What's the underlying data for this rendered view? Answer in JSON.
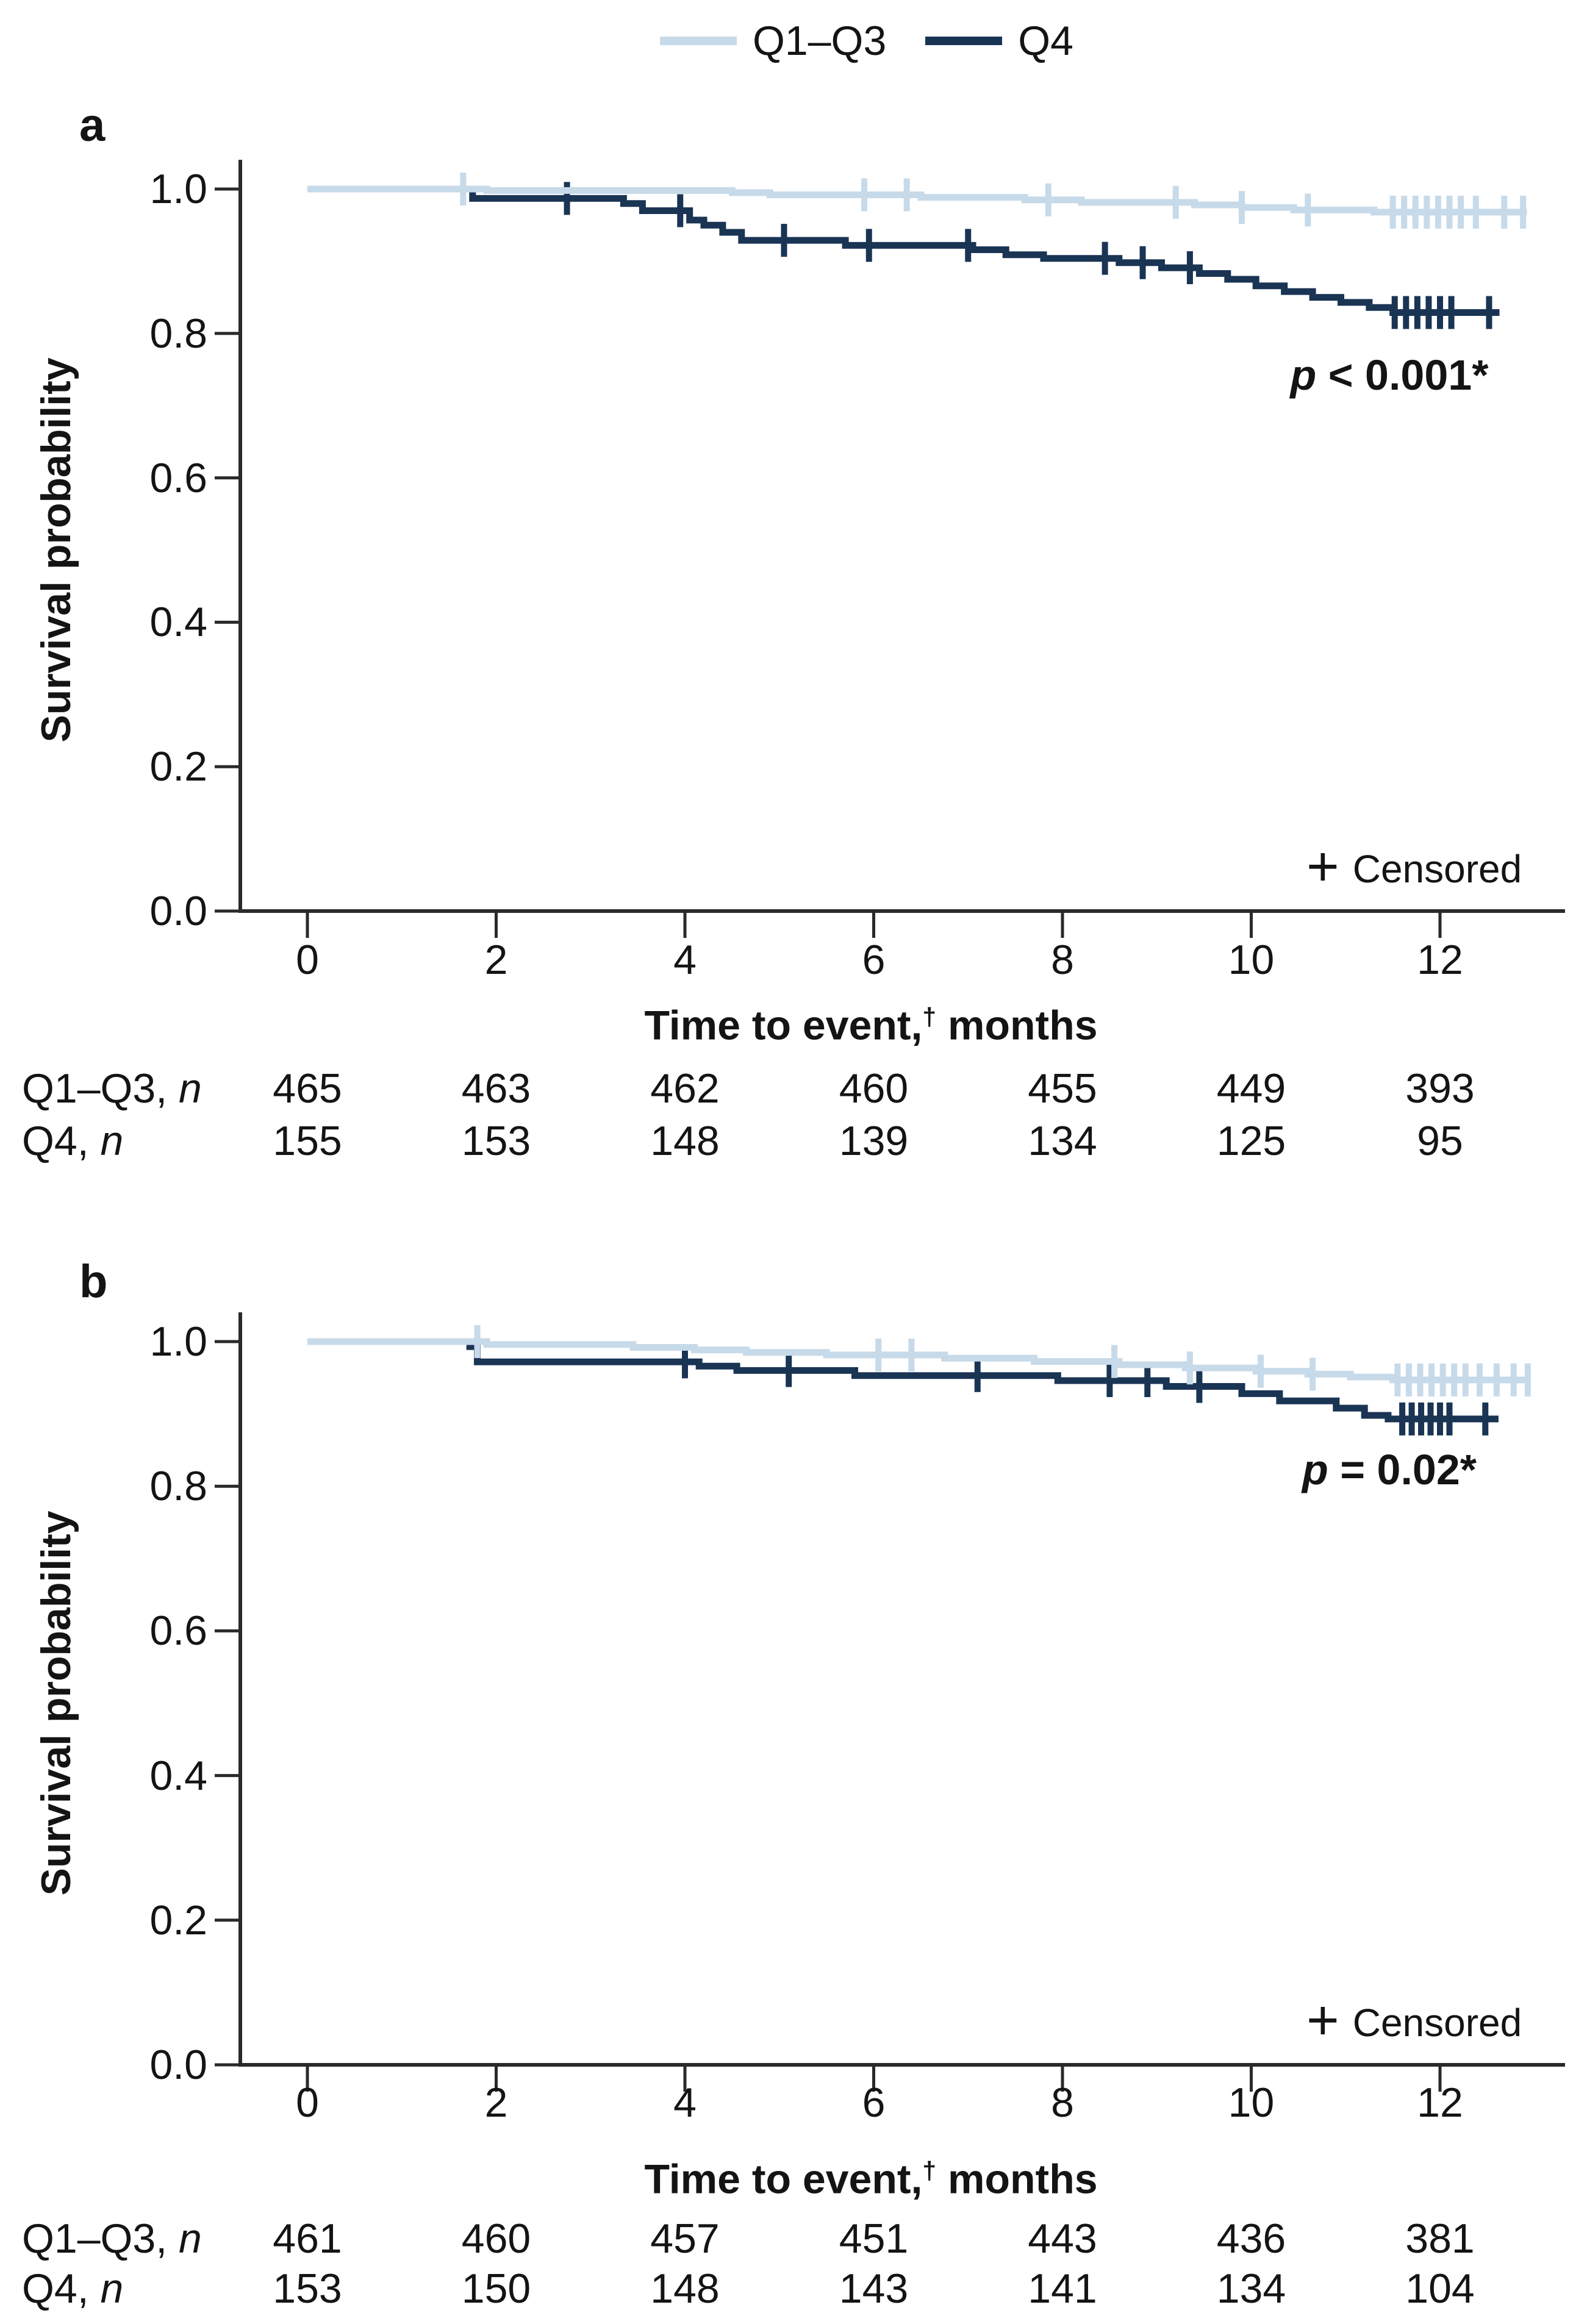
{
  "figure": {
    "legend": {
      "items": [
        {
          "label": "Q1–Q3",
          "color": "#c7dae9"
        },
        {
          "label": "Q4",
          "color": "#1a3454"
        }
      ]
    },
    "censored_symbol": "+",
    "censored_label": "Censored",
    "ylabel": "Survival probability",
    "xlabel_prefix": "Time to event,",
    "xlabel_dagger": "†",
    "xlabel_suffix": " months",
    "axis_color": "#2a2a2a",
    "text_color": "#141414"
  },
  "chart_data": [
    {
      "type": "line",
      "subtype": "kaplan-meier-step",
      "panel": "a",
      "xlabel": "Time to event,† months",
      "ylabel": "Survival probability",
      "xlim": [
        -0.7,
        13.4
      ],
      "ylim": [
        0.0,
        1.05
      ],
      "x_ticks": [
        "0",
        "2",
        "4",
        "6",
        "8",
        "10",
        "12"
      ],
      "x_tick_values": [
        0,
        2,
        4,
        6,
        8,
        10,
        12
      ],
      "y_ticks": [
        "1.0",
        "0.8",
        "0.6",
        "0.4",
        "0.2",
        "0.0"
      ],
      "y_tick_values": [
        1.0,
        0.8,
        0.6,
        0.4,
        0.2,
        0.0
      ],
      "grid": false,
      "legend_position": "top-center",
      "p_value": {
        "symbol": "p",
        "text": " < 0.001*"
      },
      "series": [
        {
          "name": "Q1–Q3",
          "color": "#c7dae9",
          "start_probability": 1.0,
          "end_time": 12.92,
          "steps": [
            [
              1.9,
              0.998
            ],
            [
              4.5,
              0.995
            ],
            [
              4.9,
              0.992
            ],
            [
              6.5,
              0.9885
            ],
            [
              7.6,
              0.985
            ],
            [
              8.2,
              0.9815
            ],
            [
              9.4,
              0.978
            ],
            [
              9.9,
              0.9745
            ],
            [
              10.45,
              0.971
            ],
            [
              11.3,
              0.968
            ]
          ],
          "censor_times": [
            1.65,
            5.9,
            6.35,
            7.85,
            9.2,
            9.9,
            10.6,
            11.5,
            11.62,
            11.74,
            11.86,
            11.98,
            12.1,
            12.22,
            12.38,
            12.68,
            12.88
          ]
        },
        {
          "name": "Q4",
          "color": "#1a3454",
          "start_probability": 1.0,
          "end_time": 12.63,
          "steps": [
            [
              1.75,
              0.987
            ],
            [
              3.35,
              0.98
            ],
            [
              3.55,
              0.97
            ],
            [
              4.05,
              0.957
            ],
            [
              4.2,
              0.95
            ],
            [
              4.4,
              0.94
            ],
            [
              4.6,
              0.929
            ],
            [
              5.7,
              0.922
            ],
            [
              7.05,
              0.916
            ],
            [
              7.4,
              0.909
            ],
            [
              7.8,
              0.904
            ],
            [
              8.6,
              0.898
            ],
            [
              9.05,
              0.891
            ],
            [
              9.45,
              0.883
            ],
            [
              9.75,
              0.875
            ],
            [
              10.05,
              0.866
            ],
            [
              10.35,
              0.858
            ],
            [
              10.65,
              0.85
            ],
            [
              10.95,
              0.843
            ],
            [
              11.25,
              0.836
            ],
            [
              11.5,
              0.829
            ]
          ],
          "censor_times": [
            2.75,
            3.95,
            5.05,
            5.95,
            7.0,
            8.45,
            8.85,
            9.35,
            11.52,
            11.64,
            11.76,
            11.88,
            12.0,
            12.12,
            12.52
          ]
        }
      ],
      "risk_table": {
        "times": [
          0,
          2,
          4,
          6,
          8,
          10,
          12
        ],
        "rows": [
          {
            "label_prefix": "Q1–Q3, ",
            "label_italic": "n",
            "values": [
              465,
              463,
              462,
              460,
              455,
              449,
              393
            ]
          },
          {
            "label_prefix": "Q4, ",
            "label_italic": "n",
            "values": [
              155,
              153,
              148,
              139,
              134,
              125,
              95
            ]
          }
        ]
      }
    },
    {
      "type": "line",
      "subtype": "kaplan-meier-step",
      "panel": "b",
      "xlabel": "Time to event,† months",
      "ylabel": "Survival probability",
      "xlim": [
        -0.7,
        13.4
      ],
      "ylim": [
        0.0,
        1.05
      ],
      "x_ticks": [
        "0",
        "2",
        "4",
        "6",
        "8",
        "10",
        "12"
      ],
      "x_tick_values": [
        0,
        2,
        4,
        6,
        8,
        10,
        12
      ],
      "y_ticks": [
        "1.0",
        "0.8",
        "0.6",
        "0.4",
        "0.2",
        "0.0"
      ],
      "y_tick_values": [
        1.0,
        0.8,
        0.6,
        0.4,
        0.2,
        0.0
      ],
      "grid": false,
      "legend_position": "top-center",
      "p_value": {
        "symbol": "p",
        "text": " = 0.02*"
      },
      "series": [
        {
          "name": "Q1–Q3",
          "color": "#c7dae9",
          "start_probability": 1.0,
          "end_time": 12.95,
          "steps": [
            [
              1.9,
              0.996
            ],
            [
              3.45,
              0.992
            ],
            [
              4.1,
              0.9885
            ],
            [
              4.65,
              0.985
            ],
            [
              5.5,
              0.9815
            ],
            [
              6.75,
              0.977
            ],
            [
              7.7,
              0.9725
            ],
            [
              8.6,
              0.968
            ],
            [
              9.3,
              0.9635
            ],
            [
              10.05,
              0.959
            ],
            [
              10.6,
              0.955
            ],
            [
              11.05,
              0.951
            ],
            [
              11.5,
              0.947
            ]
          ],
          "censor_times": [
            1.8,
            6.05,
            6.4,
            8.55,
            9.35,
            10.1,
            10.65,
            11.55,
            11.67,
            11.79,
            11.91,
            12.03,
            12.15,
            12.27,
            12.42,
            12.6,
            12.78,
            12.93
          ]
        },
        {
          "name": "Q4",
          "color": "#1a3454",
          "start_probability": 1.0,
          "end_time": 12.62,
          "steps": [
            [
              1.72,
              0.993
            ],
            [
              1.8,
              0.972
            ],
            [
              4.15,
              0.966
            ],
            [
              4.55,
              0.96
            ],
            [
              5.8,
              0.953
            ],
            [
              7.95,
              0.946
            ],
            [
              9.1,
              0.938
            ],
            [
              9.9,
              0.928
            ],
            [
              10.3,
              0.918
            ],
            [
              10.9,
              0.908
            ],
            [
              11.2,
              0.898
            ],
            [
              11.45,
              0.893
            ]
          ],
          "censor_times": [
            4.0,
            5.1,
            7.1,
            8.5,
            8.9,
            9.45,
            11.6,
            11.7,
            11.8,
            11.9,
            12.0,
            12.1,
            12.48
          ]
        }
      ],
      "risk_table": {
        "times": [
          0,
          2,
          4,
          6,
          8,
          10,
          12
        ],
        "rows": [
          {
            "label_prefix": "Q1–Q3, ",
            "label_italic": "n",
            "values": [
              461,
              460,
              457,
              451,
              443,
              436,
              381
            ]
          },
          {
            "label_prefix": "Q4, ",
            "label_italic": "n",
            "values": [
              153,
              150,
              148,
              143,
              141,
              134,
              104
            ]
          }
        ]
      }
    }
  ]
}
